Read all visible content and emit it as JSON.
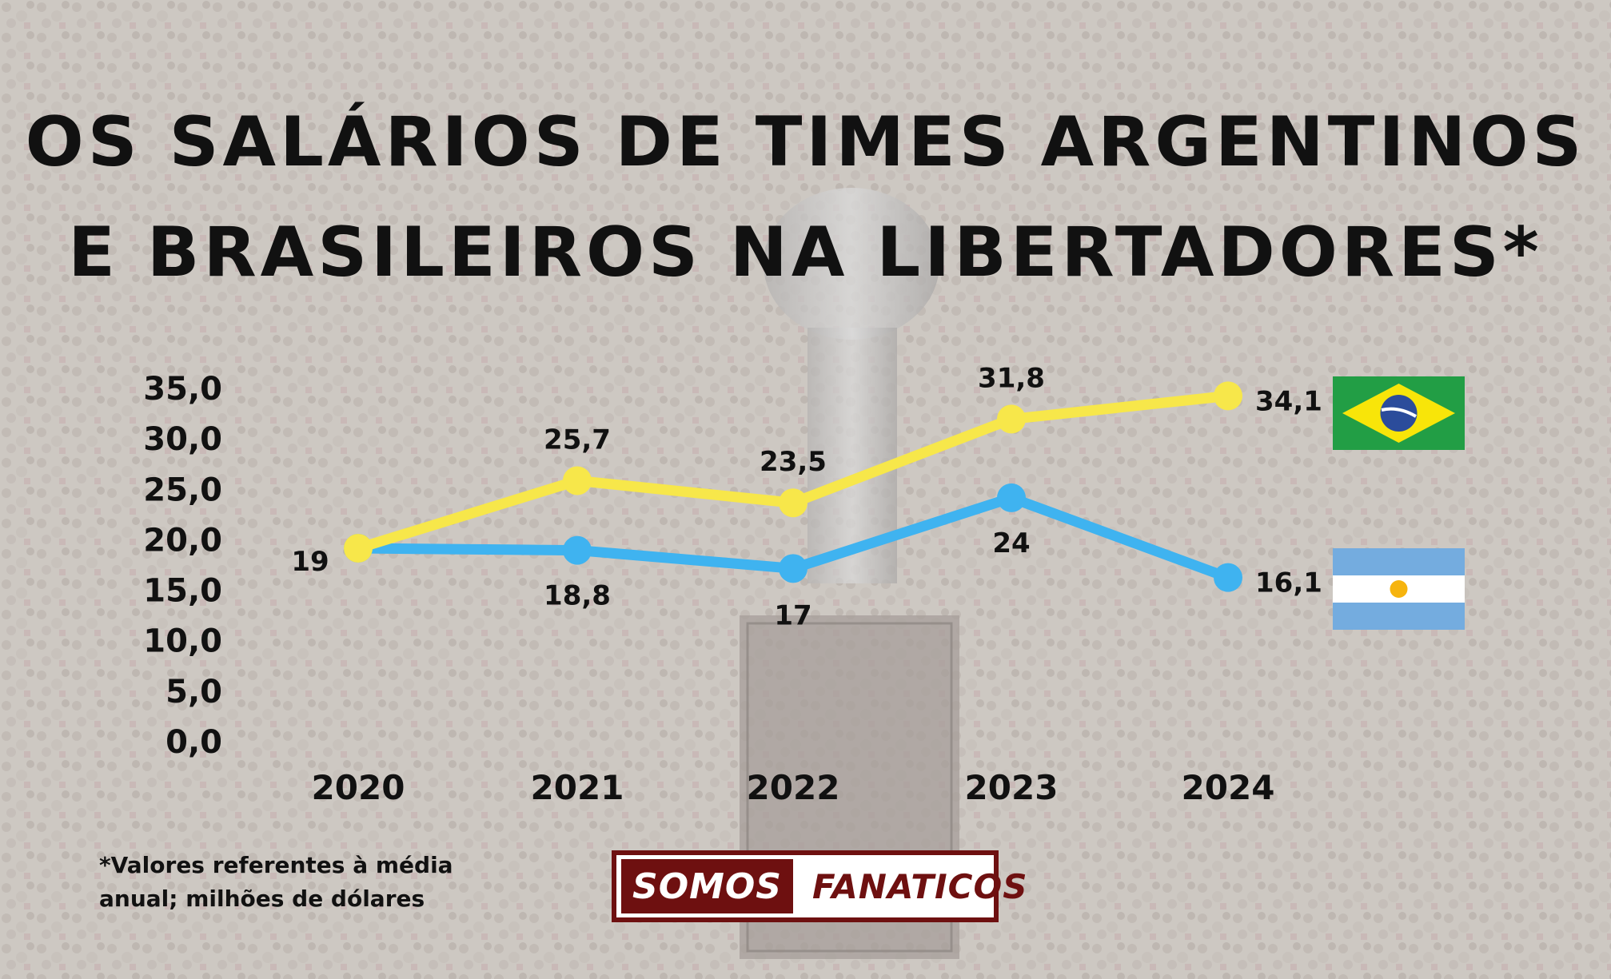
{
  "title": {
    "line1": "OS SALÁRIOS DE TIMES ARGENTINOS",
    "line2": "E BRASILEIROS NA LIBERTADORES*"
  },
  "footnote": {
    "line1": "*Valores referentes à média",
    "line2": "anual; milhões de dólares"
  },
  "logo": {
    "left": "SOMOS",
    "right": "FANATICOS"
  },
  "colors": {
    "brasil_line": "#f7e74a",
    "argentina_line": "#3fb3f0",
    "logo_brand": "#6e1010"
  },
  "chart_data": {
    "type": "line",
    "title": "OS SALÁRIOS DE TIMES ARGENTINOS E BRASILEIROS NA LIBERTADORES*",
    "xlabel": "",
    "ylabel": "",
    "categories": [
      "2020",
      "2021",
      "2022",
      "2023",
      "2024"
    ],
    "y_ticks": [
      "0,0",
      "5,0",
      "10,0",
      "15,0",
      "20,0",
      "25,0",
      "30,0",
      "35,0"
    ],
    "ylim": [
      0,
      35
    ],
    "grid": false,
    "legend": "flags at right end of each line",
    "series": [
      {
        "legend_icon": "brazil-flag-icon",
        "color": "#f7e74a",
        "values": [
          19,
          25.7,
          23.5,
          31.8,
          34.1
        ],
        "labels": [
          "19",
          "25,7",
          "23,5",
          "31,8",
          "34,1"
        ]
      },
      {
        "legend_icon": "argentina-flag-icon",
        "color": "#3fb3f0",
        "values": [
          19,
          18.8,
          17,
          24,
          16.1
        ],
        "labels": [
          "",
          "18,8",
          "17",
          "24",
          "16,1"
        ]
      }
    ]
  }
}
